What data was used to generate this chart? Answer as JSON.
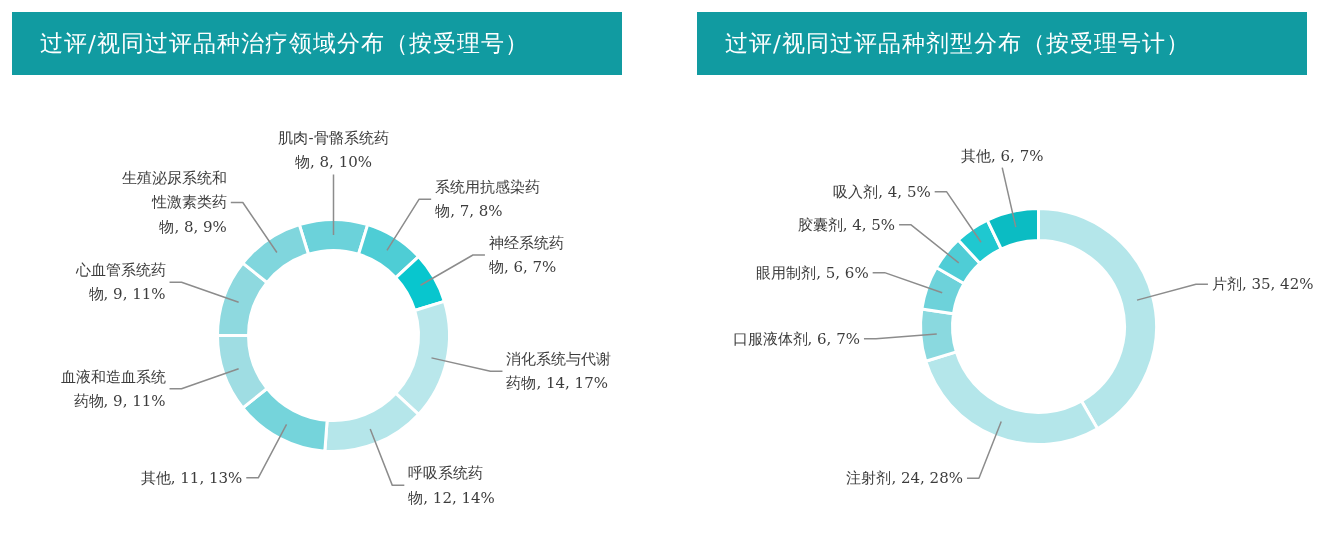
{
  "chart_data": [
    {
      "type": "donut",
      "title": "过评/视同过评品种治疗领域分布（按受理号）",
      "categories": [
        "肌肉-骨骼系统药物",
        "系统用抗感染药物",
        "神经系统药物",
        "消化系统与代谢药物",
        "呼吸系统药物",
        "其他",
        "血液和造血系统药物",
        "心血管系统药物",
        "生殖泌尿系统和性激素类药物"
      ],
      "values": [
        8,
        7,
        6,
        14,
        12,
        11,
        9,
        9,
        8
      ],
      "value_labels": [
        "8, 10%",
        "7, 8%",
        "6, 7%",
        "14, 17%",
        "12, 14%",
        "11, 13%",
        "9, 11%",
        "9, 11%",
        "8, 9%"
      ],
      "colors": [
        "#6bd2da",
        "#4ecdd5",
        "#08c6ce",
        "#b9e7eb",
        "#b5e6ea",
        "#75d4db",
        "#9fdde3",
        "#8ed9df",
        "#80d6dd"
      ]
    },
    {
      "type": "donut",
      "title": "过评/视同过评品种剂型分布（按受理号计）",
      "categories": [
        "片剂",
        "注射剂",
        "口服液体剂",
        "眼用制剂",
        "胶囊剂",
        "吸入剂",
        "其他"
      ],
      "values": [
        35,
        24,
        6,
        5,
        4,
        4,
        6
      ],
      "value_labels": [
        "35, 42%",
        "24, 28%",
        "6, 7%",
        "5, 6%",
        "4, 5%",
        "4, 5%",
        "6, 7%"
      ],
      "colors": [
        "#b4e6ea",
        "#b4e6ea",
        "#8ad9df",
        "#6dd2da",
        "#4fcdd6",
        "#1fc8d0",
        "#0bbcc3"
      ]
    }
  ]
}
